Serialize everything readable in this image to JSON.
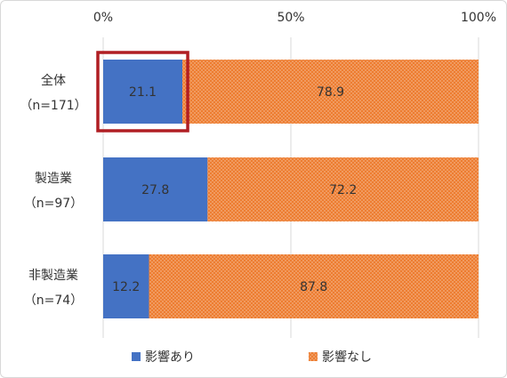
{
  "chart_data": {
    "type": "bar",
    "orientation": "horizontal",
    "stacked": true,
    "percent_stacked": true,
    "categories": [
      [
        "全体",
        "（n=171）"
      ],
      [
        "製造業",
        "（n=97）"
      ],
      [
        "非製造業",
        "（n=74）"
      ]
    ],
    "series": [
      {
        "name": "影響あり",
        "values": [
          21.1,
          27.8,
          12.2
        ],
        "color": "#4472c4",
        "pattern": "solid"
      },
      {
        "name": "影響なし",
        "values": [
          78.9,
          72.2,
          87.8
        ],
        "color": "#ed7d31",
        "pattern": "dotted"
      }
    ],
    "x_ticks": [
      "0%",
      "50%",
      "100%"
    ],
    "xlim": [
      0,
      100
    ],
    "grid": true,
    "legend_position": "bottom",
    "highlight": {
      "category_index": 0,
      "series_index": 0,
      "color": "#b01e23"
    }
  }
}
